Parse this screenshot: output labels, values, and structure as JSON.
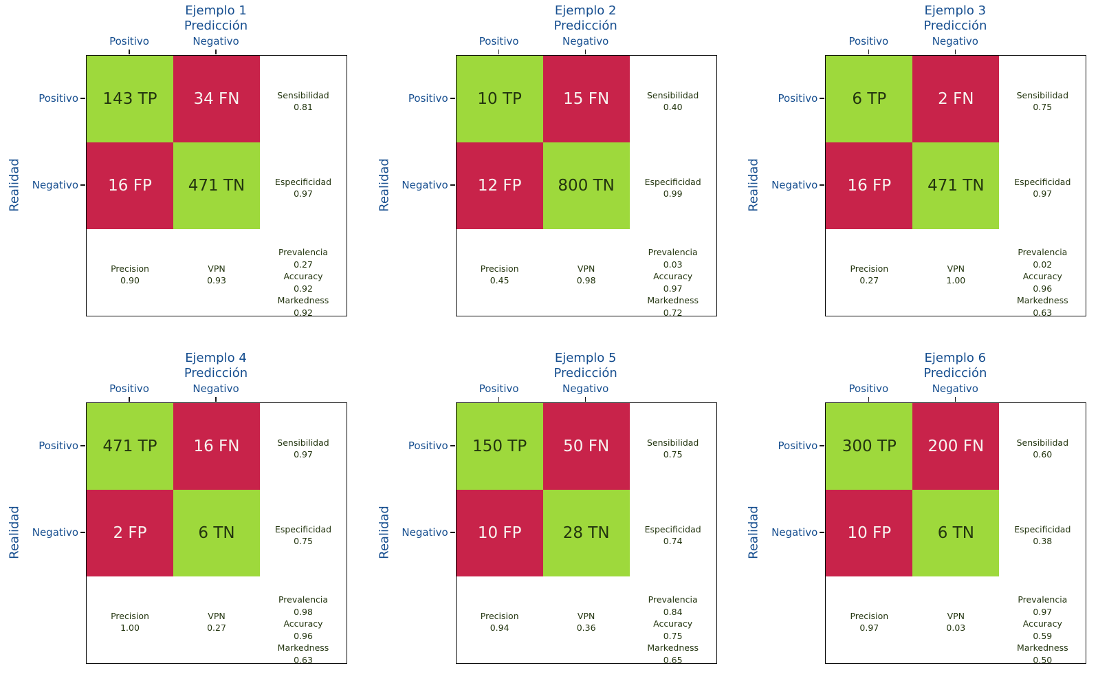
{
  "labels": {
    "prediccion": "Predicción",
    "realidad": "Realidad",
    "positivo": "Positivo",
    "negativo": "Negativo",
    "sensibilidad": "Sensibilidad",
    "especificidad": "Especificidad",
    "precision": "Precision",
    "vpn": "VPN",
    "prevalencia": "Prevalencia",
    "accuracy": "Accuracy",
    "markedness": "Markedness"
  },
  "colors": {
    "positive_cell_green": "#9ED93C",
    "negative_cell_red": "#C8234A",
    "axis_label_blue": "#164E8F",
    "stat_text_dark_green": "#23350F",
    "cell_text_light": "#F7F2EF"
  },
  "panels": [
    {
      "title": "Ejemplo 1",
      "tp_label": "143 TP",
      "fn_label": "34 FN",
      "fp_label": "16 FP",
      "tn_label": "471 TN",
      "sensibilidad": "0.81",
      "especificidad": "0.97",
      "precision": "0.90",
      "vpn": "0.93",
      "prevalencia": "0.27",
      "accuracy": "0.92",
      "markedness": "0.92"
    },
    {
      "title": "Ejemplo 2",
      "tp_label": "10 TP",
      "fn_label": "15 FN",
      "fp_label": "12 FP",
      "tn_label": "800 TN",
      "sensibilidad": "0.40",
      "especificidad": "0.99",
      "precision": "0.45",
      "vpn": "0.98",
      "prevalencia": "0.03",
      "accuracy": "0.97",
      "markedness": "0.72"
    },
    {
      "title": "Ejemplo 3",
      "tp_label": "6 TP",
      "fn_label": "2 FN",
      "fp_label": "16 FP",
      "tn_label": "471 TN",
      "sensibilidad": "0.75",
      "especificidad": "0.97",
      "precision": "0.27",
      "vpn": "1.00",
      "prevalencia": "0.02",
      "accuracy": "0.96",
      "markedness": "0.63"
    },
    {
      "title": "Ejemplo 4",
      "tp_label": "471 TP",
      "fn_label": "16 FN",
      "fp_label": "2 FP",
      "tn_label": "6 TN",
      "sensibilidad": "0.97",
      "especificidad": "0.75",
      "precision": "1.00",
      "vpn": "0.27",
      "prevalencia": "0.98",
      "accuracy": "0.96",
      "markedness": "0.63"
    },
    {
      "title": "Ejemplo 5",
      "tp_label": "150 TP",
      "fn_label": "50 FN",
      "fp_label": "10 FP",
      "tn_label": "28 TN",
      "sensibilidad": "0.75",
      "especificidad": "0.74",
      "precision": "0.94",
      "vpn": "0.36",
      "prevalencia": "0.84",
      "accuracy": "0.75",
      "markedness": "0.65"
    },
    {
      "title": "Ejemplo 6",
      "tp_label": "300 TP",
      "fn_label": "200 FN",
      "fp_label": "10 FP",
      "tn_label": "6 TN",
      "sensibilidad": "0.60",
      "especificidad": "0.38",
      "precision": "0.97",
      "vpn": "0.03",
      "prevalencia": "0.97",
      "accuracy": "0.59",
      "markedness": "0.50"
    }
  ],
  "chart_data": {
    "type": "heatmap",
    "layout": "2x3 grid of confusion matrices",
    "xlabel": "Predicción",
    "ylabel": "Realidad",
    "x_categories": [
      "Positivo",
      "Negativo"
    ],
    "y_categories": [
      "Positivo",
      "Negativo"
    ],
    "cell_color_rule": "diagonal cells (TP, TN) green; off-diagonal cells (FN, FP) crimson",
    "subplots": [
      {
        "title": "Ejemplo 1",
        "matrix": [
          [
            143,
            34
          ],
          [
            16,
            471
          ]
        ],
        "stats": {
          "Sensibilidad": 0.81,
          "Especificidad": 0.97,
          "Precision": 0.9,
          "VPN": 0.93,
          "Prevalencia": 0.27,
          "Accuracy": 0.92,
          "Markedness": 0.92
        }
      },
      {
        "title": "Ejemplo 2",
        "matrix": [
          [
            10,
            15
          ],
          [
            12,
            800
          ]
        ],
        "stats": {
          "Sensibilidad": 0.4,
          "Especificidad": 0.99,
          "Precision": 0.45,
          "VPN": 0.98,
          "Prevalencia": 0.03,
          "Accuracy": 0.97,
          "Markedness": 0.72
        }
      },
      {
        "title": "Ejemplo 3",
        "matrix": [
          [
            6,
            2
          ],
          [
            16,
            471
          ]
        ],
        "stats": {
          "Sensibilidad": 0.75,
          "Especificidad": 0.97,
          "Precision": 0.27,
          "VPN": 1.0,
          "Prevalencia": 0.02,
          "Accuracy": 0.96,
          "Markedness": 0.63
        }
      },
      {
        "title": "Ejemplo 4",
        "matrix": [
          [
            471,
            16
          ],
          [
            2,
            6
          ]
        ],
        "stats": {
          "Sensibilidad": 0.97,
          "Especificidad": 0.75,
          "Precision": 1.0,
          "VPN": 0.27,
          "Prevalencia": 0.98,
          "Accuracy": 0.96,
          "Markedness": 0.63
        }
      },
      {
        "title": "Ejemplo 5",
        "matrix": [
          [
            150,
            50
          ],
          [
            10,
            28
          ]
        ],
        "stats": {
          "Sensibilidad": 0.75,
          "Especificidad": 0.74,
          "Precision": 0.94,
          "VPN": 0.36,
          "Prevalencia": 0.84,
          "Accuracy": 0.75,
          "Markedness": 0.65
        }
      },
      {
        "title": "Ejemplo 6",
        "matrix": [
          [
            300,
            200
          ],
          [
            10,
            6
          ]
        ],
        "stats": {
          "Sensibilidad": 0.6,
          "Especificidad": 0.38,
          "Precision": 0.97,
          "VPN": 0.03,
          "Prevalencia": 0.97,
          "Accuracy": 0.59,
          "Markedness": 0.5
        }
      }
    ]
  }
}
